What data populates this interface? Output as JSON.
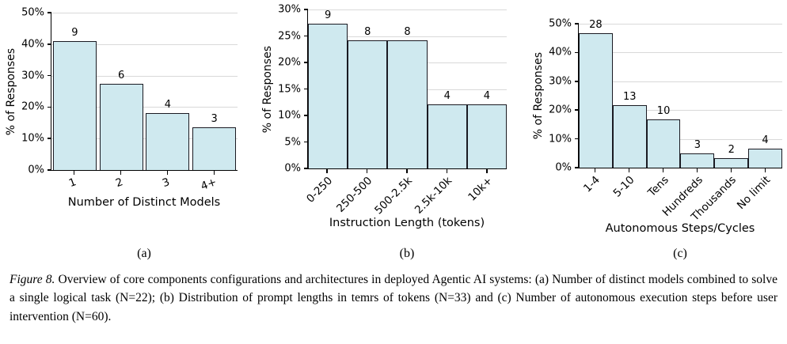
{
  "figure": {
    "caption_label": "Figure 8.",
    "caption_text": "Overview of core components configurations and architectures in deployed Agentic AI systems: (a) Number of distinct models combined to solve a single logical task (N=22); (b) Distribution of prompt lengths in temrs of tokens (N=33) and (c) Number of autonomous execution steps before user intervention (N=60)."
  },
  "colors": {
    "bar_fill": "#cfe9ef",
    "bar_edge": "#1a1a22",
    "grid": "#d9d9d9",
    "axis": "#000000"
  },
  "chart_data": [
    {
      "type": "bar",
      "subplot_label": "(a)",
      "categories": [
        "1",
        "2",
        "3",
        "4+"
      ],
      "counts": [
        9,
        6,
        4,
        3
      ],
      "values_pct": [
        40.9,
        27.3,
        18.2,
        13.6
      ],
      "xlabel": "Number of Distinct Models",
      "ylabel": "% of Responses",
      "ylim": [
        0,
        50
      ],
      "yticks": [
        "0%",
        "10%",
        "20%",
        "30%",
        "40%",
        "50%"
      ],
      "xtick_rotation": 20,
      "grid": true,
      "legend": false
    },
    {
      "type": "bar",
      "subplot_label": "(b)",
      "categories": [
        "0-250",
        "250-500",
        "500-2.5k",
        "2.5k-10k",
        "10k+"
      ],
      "counts": [
        9,
        8,
        8,
        4,
        4
      ],
      "values_pct": [
        27.3,
        24.2,
        24.2,
        12.1,
        12.1
      ],
      "xlabel": "Instruction Length (tokens)",
      "ylabel": "% of Responses",
      "ylim": [
        0,
        30
      ],
      "yticks": [
        "0%",
        "5%",
        "10%",
        "15%",
        "20%",
        "25%",
        "30%"
      ],
      "xtick_rotation": 45,
      "grid": true,
      "legend": false
    },
    {
      "type": "bar",
      "subplot_label": "(c)",
      "categories": [
        "1-4",
        "5-10",
        "Tens",
        "Hundreds",
        "Thousands",
        "No limit"
      ],
      "counts": [
        28,
        13,
        10,
        3,
        2,
        4
      ],
      "values_pct": [
        46.7,
        21.7,
        16.7,
        5.0,
        3.3,
        6.7
      ],
      "xlabel": "Autonomous Steps/Cycles",
      "ylabel": "% of Responses",
      "ylim": [
        0,
        50
      ],
      "yticks": [
        "0%",
        "10%",
        "20%",
        "30%",
        "40%",
        "50%"
      ],
      "xtick_rotation": 45,
      "grid": true,
      "legend": false
    }
  ]
}
